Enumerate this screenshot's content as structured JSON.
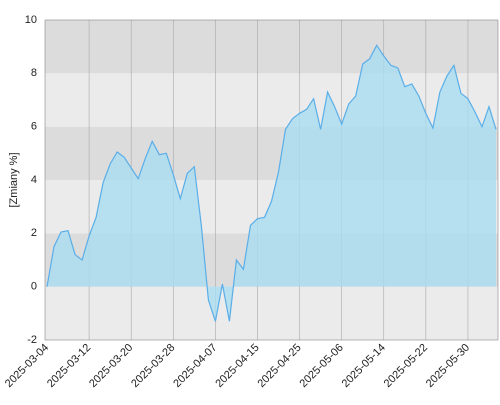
{
  "chart_data": {
    "type": "area",
    "y_label": "[Zmiany %]",
    "categories": [
      "2025-03-04",
      null,
      null,
      null,
      null,
      null,
      "2025-03-12",
      null,
      null,
      null,
      null,
      null,
      "2025-03-20",
      null,
      null,
      null,
      null,
      null,
      "2025-03-28",
      null,
      null,
      null,
      null,
      null,
      "2025-04-07",
      null,
      null,
      null,
      null,
      null,
      "2025-04-15",
      null,
      null,
      null,
      null,
      null,
      "2025-04-25",
      null,
      null,
      null,
      null,
      null,
      "2025-05-06",
      null,
      null,
      null,
      null,
      null,
      "2025-05-14",
      null,
      null,
      null,
      null,
      null,
      "2025-05-22",
      null,
      null,
      null,
      null,
      null,
      "2025-05-30",
      null,
      null,
      null,
      null
    ],
    "values": [
      0,
      1.5,
      2.05,
      2.1,
      1.2,
      1.0,
      1.9,
      2.6,
      3.9,
      4.6,
      5.05,
      4.85,
      4.45,
      4.05,
      4.8,
      5.45,
      4.95,
      5.0,
      4.2,
      3.3,
      4.25,
      4.5,
      2.3,
      -0.5,
      -1.3,
      0.1,
      -1.3,
      1.0,
      0.65,
      2.3,
      2.55,
      2.6,
      3.2,
      4.3,
      5.9,
      6.3,
      6.5,
      6.65,
      7.05,
      5.9,
      7.3,
      6.75,
      6.1,
      6.85,
      7.15,
      8.35,
      8.55,
      9.05,
      8.65,
      8.3,
      8.2,
      7.5,
      7.6,
      7.15,
      6.5,
      5.95,
      7.3,
      7.9,
      8.3,
      7.25,
      7.05,
      6.55,
      6.0,
      6.75,
      5.9
    ],
    "color": "#5aaee8",
    "fill": "#a9dcf0",
    "ylim": [
      -2,
      10
    ],
    "yticks": [
      -2,
      0,
      2,
      4,
      6,
      8,
      10
    ],
    "grid": true
  }
}
